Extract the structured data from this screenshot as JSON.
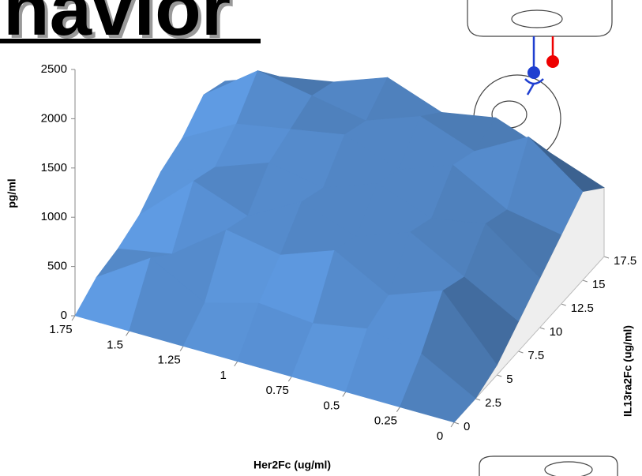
{
  "slide": {
    "title": "havior"
  },
  "chart_data": {
    "type": "surface",
    "x_label": "Her2Fc (ug/ml)",
    "y_label": "IL13ra2Fc (ug/ml)",
    "z_label": "pg/ml",
    "x": [
      0,
      0.25,
      0.5,
      0.75,
      1,
      1.25,
      1.5,
      1.75
    ],
    "y": [
      0,
      2.5,
      5,
      7.5,
      10,
      12.5,
      15,
      17.5
    ],
    "values": [
      [
        0,
        0,
        0,
        0,
        0,
        0,
        0,
        0
      ],
      [
        0,
        300,
        400,
        300,
        350,
        200,
        500,
        150
      ],
      [
        100,
        700,
        500,
        800,
        600,
        700,
        300,
        200
      ],
      [
        300,
        600,
        900,
        700,
        900,
        600,
        800,
        300
      ],
      [
        500,
        900,
        800,
        1000,
        800,
        900,
        700,
        500
      ],
      [
        700,
        800,
        1100,
        900,
        1100,
        1000,
        900,
        600
      ],
      [
        900,
        1300,
        1000,
        1200,
        1000,
        1100,
        1200,
        800
      ],
      [
        700,
        900,
        1100,
        1000,
        1200,
        1000,
        900,
        700
      ]
    ],
    "color": "#4f81bd",
    "xlim": [
      0,
      1.75
    ],
    "ylim": [
      0,
      17.5
    ],
    "zlim": [
      0,
      2500
    ],
    "xticks": [
      0,
      0.25,
      0.5,
      0.75,
      1,
      1.25,
      1.5,
      1.75
    ],
    "yticks": [
      0,
      2.5,
      5,
      7.5,
      10,
      12.5,
      15,
      17.5
    ],
    "zticks": [
      0,
      500,
      1000,
      1500,
      2000,
      2500
    ]
  }
}
